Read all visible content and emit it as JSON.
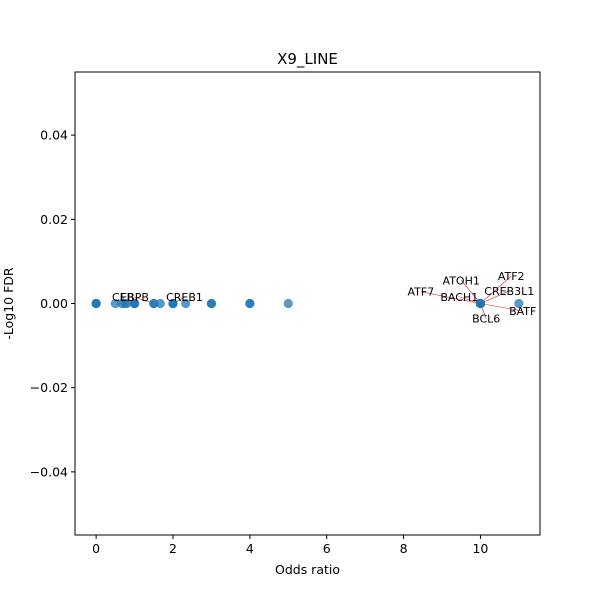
{
  "chart_data": {
    "type": "scatter",
    "title": "X9_LINE",
    "xlabel": "Odds ratio",
    "ylabel": "-Log10 FDR",
    "xlim": [
      -0.55,
      11.55
    ],
    "ylim": [
      -0.055,
      0.055
    ],
    "xticks": [
      0,
      2,
      4,
      6,
      8,
      10
    ],
    "yticks": [
      -0.04,
      -0.02,
      0.0,
      0.02,
      0.04
    ],
    "xtick_labels": [
      "0",
      "2",
      "4",
      "6",
      "8",
      "10"
    ],
    "ytick_labels": [
      "−0.04",
      "−0.02",
      "0.00",
      "0.02",
      "0.04"
    ],
    "grid": false,
    "color": "#1f77b4",
    "points": [
      {
        "x": 0,
        "y": 0
      },
      {
        "x": 0,
        "y": 0
      },
      {
        "x": 0,
        "y": 0
      },
      {
        "x": 0.5,
        "y": 0
      },
      {
        "x": 0.67,
        "y": 0
      },
      {
        "x": 0.75,
        "y": 0
      },
      {
        "x": 0.8,
        "y": 0
      },
      {
        "x": 1,
        "y": 0
      },
      {
        "x": 1,
        "y": 0
      },
      {
        "x": 1,
        "y": 0
      },
      {
        "x": 1.5,
        "y": 0
      },
      {
        "x": 1.5,
        "y": 0
      },
      {
        "x": 1.67,
        "y": 0
      },
      {
        "x": 2,
        "y": 0
      },
      {
        "x": 2,
        "y": 0
      },
      {
        "x": 2,
        "y": 0
      },
      {
        "x": 2.33,
        "y": 0
      },
      {
        "x": 3,
        "y": 0
      },
      {
        "x": 3,
        "y": 0
      },
      {
        "x": 4,
        "y": 0
      },
      {
        "x": 4,
        "y": 0
      },
      {
        "x": 5,
        "y": 0
      },
      {
        "x": 10,
        "y": 0
      },
      {
        "x": 10,
        "y": 0
      },
      {
        "x": 10,
        "y": 0
      },
      {
        "x": 10,
        "y": 0
      },
      {
        "x": 10,
        "y": 0
      },
      {
        "x": 11,
        "y": 0
      }
    ],
    "annotations": [
      {
        "text": "CEB",
        "x": 0.7,
        "y": 0.0015,
        "px": 0.75,
        "py": 0
      },
      {
        "text": "EBPB",
        "x": 1.0,
        "y": 0.0015,
        "px": 1.5,
        "py": 0
      },
      {
        "text": "CREB1",
        "x": 2.3,
        "y": 0.0015,
        "px": 2.0,
        "py": 0
      },
      {
        "text": "ATF7",
        "x": 8.45,
        "y": 0.0028,
        "px": 10,
        "py": 0
      },
      {
        "text": "ATOH1",
        "x": 9.5,
        "y": 0.0055,
        "px": 10,
        "py": 0
      },
      {
        "text": "ATF2",
        "x": 10.8,
        "y": 0.0065,
        "px": 10,
        "py": 0
      },
      {
        "text": "CREB3L1",
        "x": 10.75,
        "y": 0.003,
        "px": 10,
        "py": 0
      },
      {
        "text": "BACH1",
        "x": 9.45,
        "y": 0.0016,
        "px": 10,
        "py": 0
      },
      {
        "text": "BATF",
        "x": 11.1,
        "y": -0.0018,
        "px": 10,
        "py": 0
      },
      {
        "text": "BCL6",
        "x": 10.15,
        "y": -0.0036,
        "px": 10,
        "py": 0
      }
    ]
  }
}
